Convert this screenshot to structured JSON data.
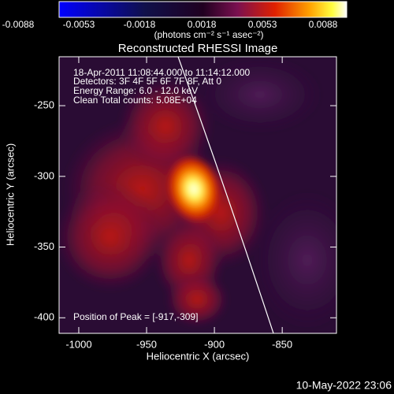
{
  "chart_data": {
    "type": "image",
    "title": "Reconstructed RHESSI Image",
    "colorbar": {
      "clim": [
        -0.0088,
        0.0088
      ],
      "ticks": [
        -0.0088,
        -0.0053,
        -0.0018,
        0.0018,
        0.0053,
        0.0088
      ],
      "label": "(photons cm⁻² s⁻¹ asec⁻²)"
    },
    "annotations": [
      "18-Apr-2011 11:08:44.000 to 11:14:12.000",
      "Detectors: 3F 4F 5F 6F 7F 8F, Att 0",
      "Energy Range: 6.0 - 12.0 keV",
      "Clean     Total counts: 5.08E+04"
    ],
    "peak_label": "Position of Peak = [-917,-309]",
    "xlabel": "Heliocentric X (arcsec)",
    "ylabel": "Heliocentric Y (arcsec)",
    "xlim": [
      -1014.5,
      -810
    ],
    "xticks": [
      -1000,
      -950,
      -900,
      -850
    ],
    "ylim": [
      -411,
      -215.4
    ],
    "yticks": [
      -250,
      -300,
      -350,
      -400
    ],
    "timestamp": "10-May-2022 23:06"
  }
}
